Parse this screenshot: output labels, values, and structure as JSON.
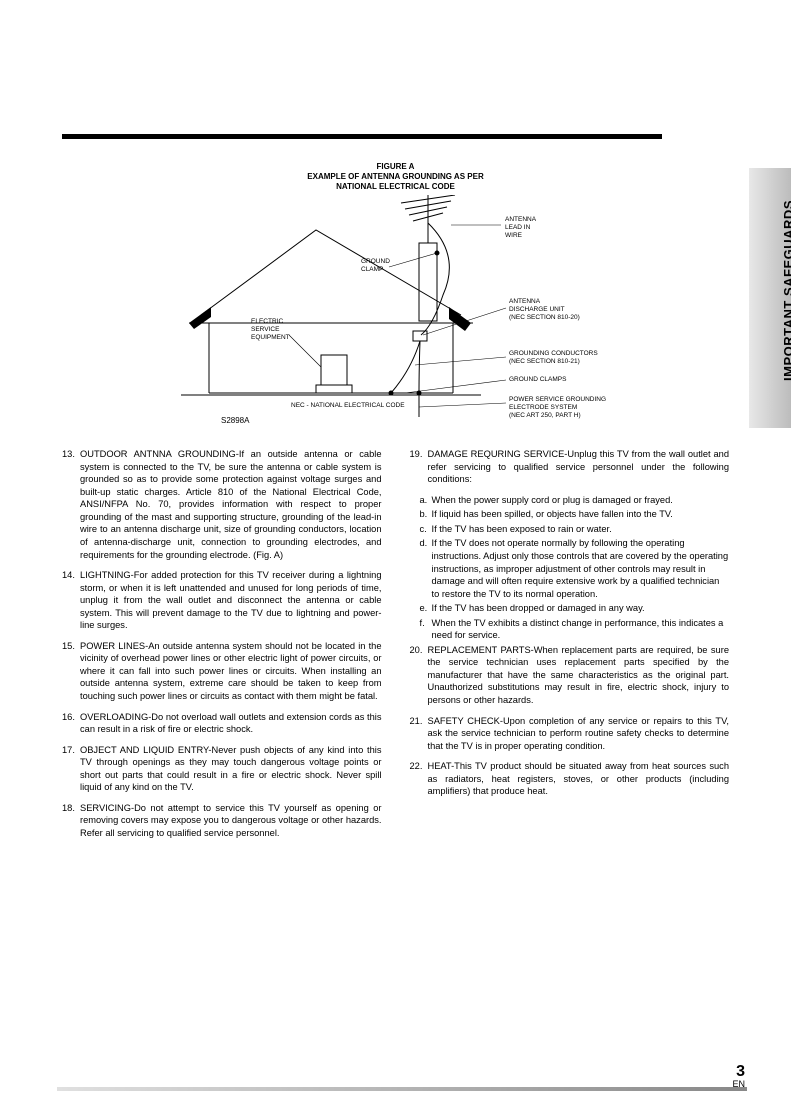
{
  "side_tab": "IMPORTANT SAFEGUARDS",
  "figure": {
    "title": "FIGURE A",
    "subtitle_l1": "EXAMPLE OF ANTENNA GROUNDING AS PER",
    "subtitle_l2": "NATIONAL ELECTRICAL CODE",
    "labels": {
      "antenna_lead": "ANTENNA\nLEAD IN\nWIRE",
      "ground_clamp": "GROUND\nCLAMP",
      "antenna_discharge": "ANTENNA\nDISCHARGE UNIT\n(NEC SECTION 810-20)",
      "electric_service": "ELECTRIC\nSERVICE\nEQUIPMENT",
      "grounding_conductors": "GROUNDING CONDUCTORS\n(NEC SECTION 810-21)",
      "ground_clamps": "GROUND CLAMPS",
      "power_service": "POWER SERVICE GROUNDING\nELECTRODE SYSTEM\n(NEC ART 250, PART H)",
      "nec_note": "NEC - NATIONAL ELECTRICAL CODE",
      "model": "S2898A"
    },
    "colors": {
      "stroke": "#000000",
      "bg": "#ffffff"
    }
  },
  "left_items": [
    {
      "n": "13.",
      "t": "OUTDOOR ANTNNA GROUNDING-If an outside antenna or cable system is connected to the TV, be sure the antenna or cable system is grounded so as to provide some protection against voltage surges and built-up static charges. Article 810 of the National Electrical Code, ANSI/NFPA No. 70, provides information with respect to proper grounding of the mast and supporting structure, grounding of the lead-in wire to an antenna discharge unit, size of grounding conductors, location of antenna-discharge unit, connection to grounding electrodes, and requirements for the grounding electrode. (Fig. A)"
    },
    {
      "n": "14.",
      "t": "LIGHTNING-For added protection for this TV receiver during a lightning storm, or when it is left unattended and unused for long periods of time, unplug it from the wall outlet and disconnect the antenna or cable system. This will prevent damage to the TV due to lightning and power-line surges."
    },
    {
      "n": "15.",
      "t": "POWER LINES-An outside antenna system should not be located in the vicinity of overhead power lines or other electric light of power circuits, or where it can fall into such power lines or circuits. When installing an outside antenna system, extreme care should be taken to keep from touching such power lines or circuits as contact with them might be fatal."
    },
    {
      "n": "16.",
      "t": "OVERLOADING-Do not overload wall outlets and extension cords as this can result in a risk of fire or electric shock."
    },
    {
      "n": "17.",
      "t": "OBJECT AND LIQUID ENTRY-Never push objects of any kind into this TV through openings as they may touch dangerous voltage points or short out parts that could result in a fire or electric shock. Never spill liquid of any kind on the TV."
    },
    {
      "n": "18.",
      "t": "SERVICING-Do not attempt to service this TV yourself as opening or removing covers may expose you to dangerous voltage or other hazards. Refer all servicing to qualified service personnel."
    }
  ],
  "right_items": [
    {
      "n": "19.",
      "t": "DAMAGE REQURING SERVICE-Unplug this TV from the wall outlet and refer servicing to qualified service personnel under the following conditions:",
      "subs": [
        {
          "l": "a.",
          "t": "When the power supply cord or plug is damaged or frayed."
        },
        {
          "l": "b.",
          "t": "If liquid has been spilled, or objects have fallen into the TV."
        },
        {
          "l": "c.",
          "t": "If the TV has been exposed to rain or water."
        },
        {
          "l": "d.",
          "t": "If the TV does not operate normally by following the operating instructions. Adjust only those controls that are covered by the operating instructions, as improper adjustment of other controls may result in damage and will often require extensive work by a qualified technician to restore the TV to its normal operation."
        },
        {
          "l": "e.",
          "t": "If the TV has been dropped or damaged in any way."
        },
        {
          "l": "f.",
          "t": "When the TV exhibits a distinct change in performance, this indicates a need for service."
        }
      ]
    },
    {
      "n": "20.",
      "t": "REPLACEMENT PARTS-When replacement parts are required, be sure the service technician uses replacement parts specified by the manufacturer that have the same characteristics as the original part. Unauthorized substitutions may result in fire, electric shock, injury to persons or other hazards."
    },
    {
      "n": "21.",
      "t": "SAFETY CHECK-Upon completion of any service or repairs to this TV, ask the service technician to perform routine safety checks to determine that the TV is in proper operating condition."
    },
    {
      "n": "22.",
      "t": "HEAT-This TV product should be situated away from heat sources such as radiators, heat registers, stoves, or other products (including amplifiers) that produce heat."
    }
  ],
  "footer": {
    "page": "3",
    "lang": "EN"
  }
}
